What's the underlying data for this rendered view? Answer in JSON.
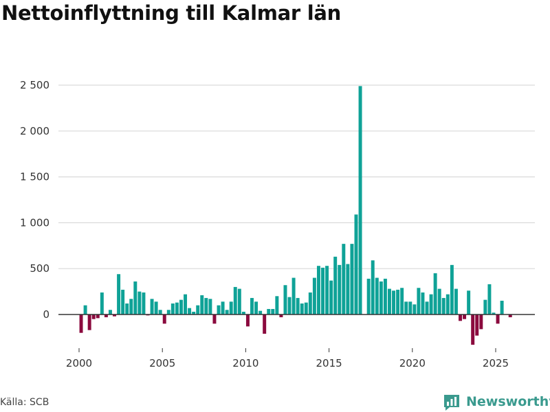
{
  "title": "Nettoinflyttning till Kalmar län",
  "source": "Källa: SCB",
  "brand": {
    "name": "Newsworthy",
    "icon": "bar-chart-logo-icon"
  },
  "colors": {
    "positive": "#0fa297",
    "negative": "#8b0a3e",
    "grid": "#d9d9d9",
    "brand": "#3a9a8e"
  },
  "chart_data": {
    "type": "bar",
    "title": "Nettoinflyttning till Kalmar län",
    "xlabel": "",
    "ylabel": "",
    "ylim": [
      -350,
      2600
    ],
    "xlim": [
      1999.0,
      2027.0
    ],
    "yticks": [
      0,
      500,
      1000,
      1500,
      2000,
      2500
    ],
    "ytick_labels": [
      "0",
      "500",
      "1 000",
      "1 500",
      "2 000",
      "2 500"
    ],
    "xticks": [
      2000,
      2005,
      2010,
      2015,
      2020,
      2025
    ],
    "xtick_labels": [
      "2000",
      "2005",
      "2010",
      "2015",
      "2020",
      "2025"
    ],
    "frequency": "quarterly",
    "start": 2000.0,
    "step": 0.25,
    "values": [
      -200,
      100,
      -170,
      -50,
      -40,
      240,
      -30,
      50,
      -20,
      440,
      270,
      120,
      170,
      360,
      250,
      240,
      -10,
      170,
      140,
      50,
      -100,
      50,
      120,
      130,
      160,
      220,
      70,
      30,
      100,
      210,
      180,
      170,
      -100,
      100,
      140,
      50,
      140,
      300,
      280,
      30,
      -130,
      180,
      140,
      40,
      -210,
      60,
      60,
      200,
      -30,
      320,
      190,
      400,
      180,
      120,
      130,
      240,
      400,
      530,
      510,
      530,
      370,
      630,
      540,
      770,
      550,
      770,
      1090,
      2490,
      0,
      390,
      590,
      400,
      360,
      390,
      280,
      260,
      270,
      290,
      140,
      140,
      110,
      290,
      240,
      140,
      220,
      450,
      280,
      180,
      220,
      540,
      280,
      -70,
      -50,
      260,
      -330,
      -230,
      -160,
      160,
      330,
      20,
      -100,
      150,
      0,
      -30
    ]
  }
}
